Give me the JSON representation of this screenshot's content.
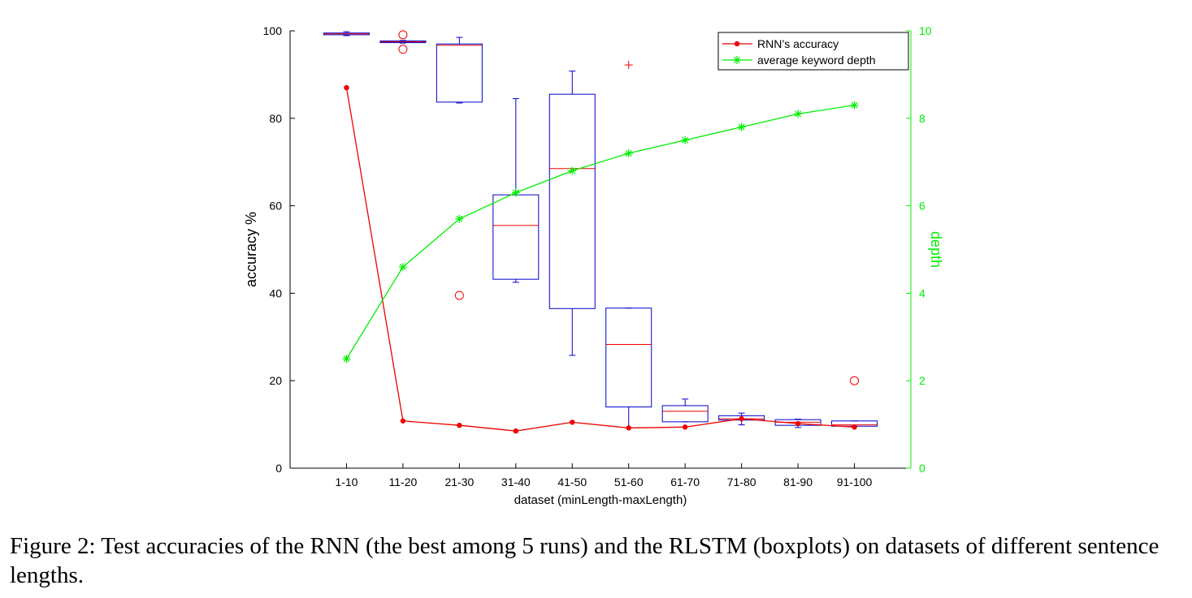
{
  "caption": "Figure 2: Test accuracies of the RNN (the best among 5 runs) and the RLSTM (boxplots) on datasets of different sentence lengths.",
  "colors": {
    "rnn": "#ee0000",
    "depth": "#00ee00",
    "box": "#0000cc",
    "median": "#ee0000",
    "outlier": "#ee0000"
  },
  "chart_data": {
    "type": "box+line",
    "xlabel": "dataset (minLength-maxLength)",
    "ylabel": "accuracy   %",
    "y2label": "depth",
    "categories": [
      "1-10",
      "11-20",
      "21-30",
      "31-40",
      "41-50",
      "51-60",
      "61-70",
      "71-80",
      "81-90",
      "91-100"
    ],
    "ylim": [
      0,
      100
    ],
    "y2lim": [
      0,
      10
    ],
    "yticks": [
      0,
      20,
      40,
      60,
      80,
      100
    ],
    "y2ticks": [
      0,
      2,
      4,
      6,
      8,
      10
    ],
    "legend": {
      "placement": "top-right",
      "entries": [
        "RNN’s accuracy",
        "average keyword depth"
      ]
    },
    "series": [
      {
        "name": "RNN’s accuracy",
        "axis": "left",
        "marker": "dot",
        "values": [
          87,
          10.8,
          9.8,
          8.5,
          10.5,
          9.2,
          9.4,
          11.3,
          10.2,
          9.4
        ]
      },
      {
        "name": "average keyword depth",
        "axis": "right",
        "marker": "asterisk",
        "values": [
          2.5,
          4.6,
          5.7,
          6.3,
          6.8,
          7.2,
          7.5,
          7.8,
          8.1,
          8.3
        ]
      }
    ],
    "boxplots": [
      {
        "category": "1-10",
        "whisker_low": 98.9,
        "q1": 99.1,
        "median": 99.3,
        "q3": 99.5,
        "whisker_high": 99.8,
        "outliers": []
      },
      {
        "category": "11-20",
        "whisker_low": 97.2,
        "q1": 97.3,
        "median": 97.5,
        "q3": 97.7,
        "whisker_high": 97.8,
        "outliers": [
          95.8,
          99.1
        ]
      },
      {
        "category": "21-30",
        "whisker_low": 83.5,
        "q1": 83.7,
        "median": 96.7,
        "q3": 97.0,
        "whisker_high": 98.5,
        "outliers": [
          39.5
        ]
      },
      {
        "category": "31-40",
        "whisker_low": 42.5,
        "q1": 43.2,
        "median": 55.5,
        "q3": 62.5,
        "whisker_high": 84.5,
        "outliers": []
      },
      {
        "category": "41-50",
        "whisker_low": 25.8,
        "q1": 36.5,
        "median": 68.5,
        "q3": 85.5,
        "whisker_high": 90.8,
        "outliers": []
      },
      {
        "category": "51-60",
        "whisker_low": 9.2,
        "q1": 14.0,
        "median": 28.3,
        "q3": 36.6,
        "whisker_high": 36.6,
        "outliers": [
          92.2
        ],
        "outlier_marker": "plus"
      },
      {
        "category": "61-70",
        "whisker_low": 10.6,
        "q1": 10.6,
        "median": 13.0,
        "q3": 14.3,
        "whisker_high": 15.8,
        "outliers": []
      },
      {
        "category": "71-80",
        "whisker_low": 9.9,
        "q1": 11.0,
        "median": 11.3,
        "q3": 12.0,
        "whisker_high": 12.6,
        "outliers": []
      },
      {
        "category": "81-90",
        "whisker_low": 9.3,
        "q1": 9.8,
        "median": 10.5,
        "q3": 11.1,
        "whisker_high": 11.2,
        "outliers": []
      },
      {
        "category": "91-100",
        "whisker_low": 9.6,
        "q1": 9.6,
        "median": 9.9,
        "q3": 10.8,
        "whisker_high": 10.8,
        "outliers": [
          20.0
        ]
      }
    ]
  }
}
